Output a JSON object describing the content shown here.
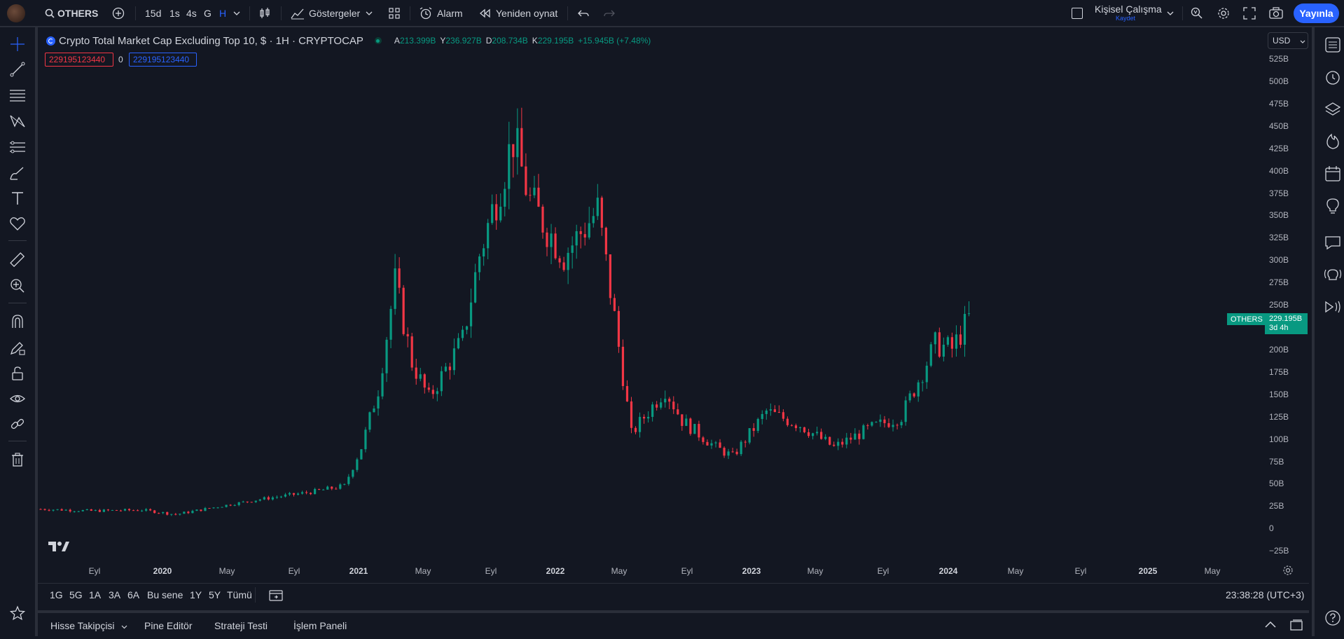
{
  "topbar": {
    "symbol": "OTHERS",
    "intervals": [
      "15d",
      "1s",
      "4s",
      "G",
      "H"
    ],
    "active_interval": "H",
    "indicators_label": "Göstergeler",
    "alarm_label": "Alarm",
    "replay_label": "Yeniden oynat",
    "layout_name": "Kişisel Çalışma",
    "layout_status": "Kaydet",
    "publish_label": "Yayınla"
  },
  "legend": {
    "title": "Crypto Total Market Cap Excluding Top 10, $ · 1H · CRYPTOCAP",
    "open_key": "A",
    "open": "213.399B",
    "high_key": "Y",
    "high": "236.927B",
    "low_key": "D",
    "low": "208.734B",
    "close_key": "K",
    "close": "229.195B",
    "change": "+15.945B (+7.48%)",
    "vol_red": "229195123440",
    "vol_zero": "0",
    "vol_blue": "229195123440"
  },
  "price_scale": {
    "currency": "USD",
    "labels": [
      "525B",
      "500B",
      "475B",
      "450B",
      "425B",
      "400B",
      "375B",
      "350B",
      "325B",
      "300B",
      "275B",
      "250B",
      "225B",
      "200B",
      "175B",
      "150B",
      "125B",
      "100B",
      "75B",
      "50B",
      "25B",
      "0",
      "−25B"
    ],
    "last_symbol": "OTHERS",
    "last_price": "229.195B",
    "countdown": "3d 4h"
  },
  "time_scale": {
    "labels": [
      "Eyl",
      "2020",
      "May",
      "Eyl",
      "2021",
      "May",
      "Eyl",
      "2022",
      "May",
      "Eyl",
      "2023",
      "May",
      "Eyl",
      "2024",
      "May",
      "Eyl",
      "2025",
      "May"
    ]
  },
  "range_bar": {
    "ranges": [
      "1G",
      "5G",
      "1A",
      "3A",
      "6A",
      "Bu sene",
      "1Y",
      "5Y",
      "Tümü"
    ],
    "clock": "23:38:28 (UTC+3)"
  },
  "bottom_panel": {
    "tabs": [
      "Hisse Takipçisi",
      "Pine Editör",
      "Strateji Testi",
      "İşlem Paneli"
    ]
  },
  "colors": {
    "background": "#131722",
    "up": "#089981",
    "down": "#f23645",
    "accent": "#2962ff"
  },
  "chart_data": {
    "type": "candlestick",
    "title": "Crypto Total Market Cap Excluding Top 10, $ · 1H · CRYPTOCAP",
    "x_range": [
      "2019-07",
      "2025-06"
    ],
    "y_unit": "B USD",
    "ylim": [
      -25,
      525
    ],
    "x": [
      "2019-07",
      "2019-10",
      "2020-01",
      "2020-03",
      "2020-05",
      "2020-08",
      "2020-11",
      "2021-01",
      "2021-02",
      "2021-03",
      "2021-04",
      "2021-05",
      "2021-06",
      "2021-08",
      "2021-09",
      "2021-11",
      "2021-12",
      "2022-02",
      "2022-04",
      "2022-05",
      "2022-06",
      "2022-08",
      "2022-09",
      "2022-11",
      "2022-12",
      "2023-02",
      "2023-04",
      "2023-06",
      "2023-08",
      "2023-10",
      "2023-12",
      "2024-01",
      "2024-02"
    ],
    "close": [
      16,
      14,
      15,
      10,
      17,
      27,
      35,
      42,
      85,
      150,
      270,
      180,
      140,
      205,
      300,
      430,
      360,
      300,
      350,
      230,
      100,
      150,
      115,
      85,
      75,
      125,
      110,
      85,
      105,
      120,
      200,
      195,
      229
    ]
  }
}
